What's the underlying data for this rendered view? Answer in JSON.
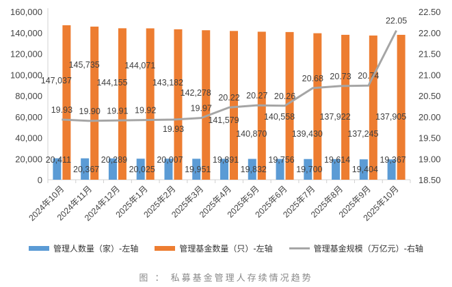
{
  "chart_data": {
    "type": "bar",
    "categories": [
      "2024年10月",
      "2024年11月",
      "2024年12月",
      "2025年1月",
      "2025年2月",
      "2025年3月",
      "2025年4月",
      "2025年5月",
      "2025年6月",
      "2025年7月",
      "2025年8月",
      "2025年9月",
      "2025年10月"
    ],
    "series": [
      {
        "name": "管理人数量（家）-左轴",
        "type": "bar",
        "axis": "left",
        "color": "#5b9bd5",
        "values": [
          20411,
          20367,
          20289,
          20025,
          20007,
          19951,
          19891,
          19832,
          19756,
          19700,
          19614,
          19404,
          19367
        ]
      },
      {
        "name": "管理基金数量（只）-左轴",
        "type": "bar",
        "axis": "left",
        "color": "#ed7d31",
        "values": [
          147037,
          145735,
          144155,
          144071,
          143182,
          142278,
          141579,
          140870,
          140558,
          139430,
          137922,
          137245,
          137905
        ]
      },
      {
        "name": "管理基金规模（万亿元）-右轴",
        "type": "line",
        "axis": "right",
        "color": "#a5a5a5",
        "values": [
          19.93,
          19.9,
          19.91,
          19.92,
          19.93,
          19.97,
          20.22,
          20.27,
          20.26,
          20.68,
          20.73,
          20.74,
          22.05
        ]
      }
    ],
    "left_axis": {
      "ylim": [
        0,
        160000
      ],
      "ticks": [
        "0",
        "20,000",
        "40,000",
        "60,000",
        "80,000",
        "100,000",
        "120,000",
        "140,000",
        "160,000"
      ]
    },
    "right_axis": {
      "ylim": [
        18.5,
        22.5
      ],
      "ticks": [
        "18.50",
        "19.00",
        "19.50",
        "20.00",
        "20.50",
        "21.00",
        "21.50",
        "22.00",
        "22.50"
      ]
    },
    "data_labels": {
      "managers": [
        "20,411",
        "20,367",
        "20,289",
        "20,025",
        "20,007",
        "19,951",
        "19,891",
        "19,832",
        "19,756",
        "19,700",
        "19,614",
        "19,404",
        "19,367"
      ],
      "funds": [
        "147,037",
        "145,735",
        "144,155",
        "144,071",
        "143,182",
        "142,278",
        "141,579",
        "140,870",
        "140,558",
        "139,430",
        "137,922",
        "137,245",
        "137,905"
      ],
      "scale": [
        "19.93",
        "19.90",
        "19.91",
        "19.92",
        "19.93",
        "19.97",
        "20.22",
        "20.27",
        "20.26",
        "20.68",
        "20.73",
        "20.74",
        "22.05"
      ]
    },
    "legend_position": "bottom",
    "grid": false
  },
  "caption": "图 ： 私募基金管理人存续情况趋势"
}
